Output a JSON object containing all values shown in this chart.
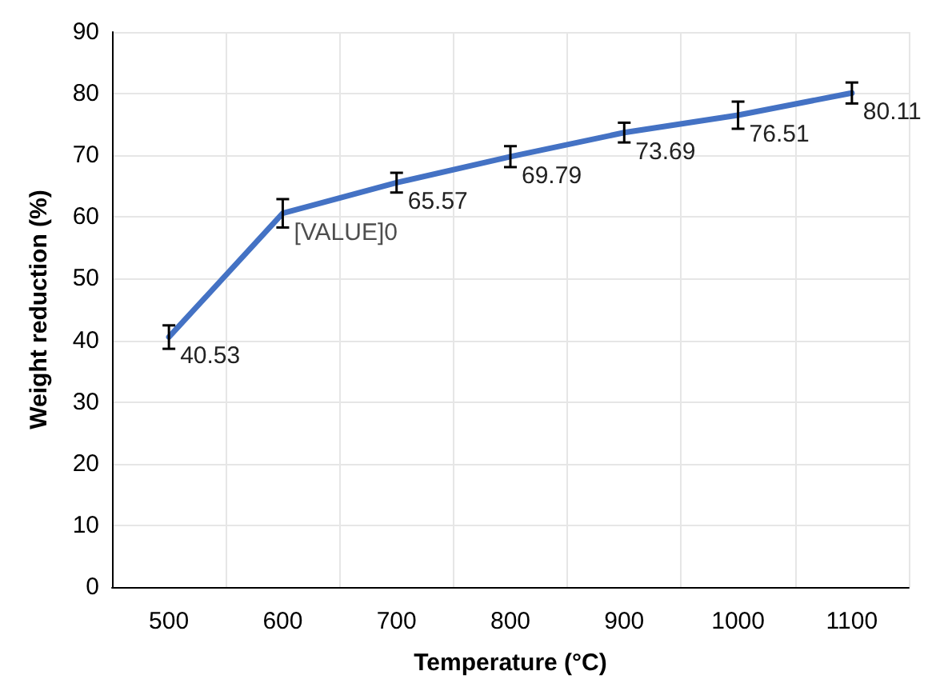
{
  "chart_data": {
    "type": "line",
    "xlabel": "Temperature (°C)",
    "ylabel": "Weight reduction (%)",
    "categories": [
      "500",
      "600",
      "700",
      "800",
      "900",
      "1000",
      "1100"
    ],
    "values": [
      40.53,
      60.6,
      65.57,
      69.79,
      73.69,
      76.51,
      80.11
    ],
    "value_labels": [
      "40.53",
      null,
      "65.57",
      "69.79",
      "73.69",
      "76.51",
      "80.11"
    ],
    "annotations": [
      {
        "text": "[VALUE]0",
        "x": "600",
        "y": 60.6
      }
    ],
    "errors": [
      1.9,
      2.3,
      1.6,
      1.7,
      1.6,
      2.2,
      1.7
    ],
    "color": "#4472c4",
    "ylim": [
      0,
      90
    ],
    "yticks": [
      0,
      10,
      20,
      30,
      40,
      50,
      60,
      70,
      80,
      90
    ],
    "grid": true,
    "marker": "none",
    "line_style": "solid"
  }
}
